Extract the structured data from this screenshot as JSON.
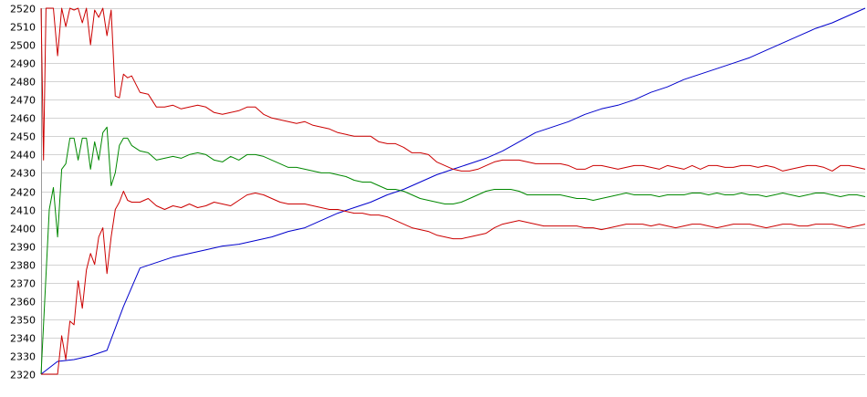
{
  "chart_data": {
    "type": "line",
    "title": "",
    "xlabel": "",
    "ylabel": "",
    "ylim": [
      2320,
      2520
    ],
    "xlim": [
      0,
      100
    ],
    "yticks": [
      "2320",
      "2330",
      "2340",
      "2350",
      "2360",
      "2370",
      "2380",
      "2390",
      "2400",
      "2410",
      "2420",
      "2430",
      "2440",
      "2450",
      "2460",
      "2470",
      "2480",
      "2490",
      "2500",
      "2510",
      "2520"
    ],
    "grid": true,
    "legend": "none",
    "series": [
      {
        "color": "#0000cc",
        "x": [
          0,
          2,
          4,
          6,
          8,
          10,
          12,
          14,
          16,
          18,
          20,
          22,
          24,
          26,
          28,
          30,
          32,
          34,
          36,
          38,
          40,
          42,
          44,
          46,
          48,
          50,
          52,
          54,
          56,
          58,
          60,
          62,
          64,
          66,
          68,
          70,
          72,
          74,
          76,
          78,
          80,
          82,
          84,
          86,
          88,
          90,
          92,
          94,
          96,
          98,
          100
        ],
        "values": [
          2320,
          2327,
          2328,
          2330,
          2333,
          2357,
          2378,
          2381,
          2384,
          2386,
          2388,
          2390,
          2391,
          2393,
          2395,
          2398,
          2400,
          2404,
          2408,
          2411,
          2414,
          2418,
          2421,
          2425,
          2429,
          2432,
          2435,
          2438,
          2442,
          2447,
          2452,
          2455,
          2458,
          2462,
          2465,
          2467,
          2470,
          2474,
          2477,
          2481,
          2484,
          2487,
          2490,
          2493,
          2497,
          2501,
          2505,
          2509,
          2512,
          2516,
          2520
        ]
      },
      {
        "color": "#cc0000",
        "x": [
          0,
          0.3,
          0.6,
          1,
          1.5,
          2,
          2.5,
          3,
          3.5,
          4,
          4.5,
          5,
          5.5,
          6,
          6.5,
          7,
          7.5,
          8,
          8.5,
          9,
          9.5,
          10,
          10.5,
          11,
          12,
          13,
          14,
          15,
          16,
          17,
          18,
          19,
          20,
          21,
          22,
          23,
          24,
          25,
          26,
          27,
          28,
          29,
          30,
          31,
          32,
          33,
          34,
          35,
          36,
          37,
          38,
          39,
          40,
          41,
          42,
          43,
          44,
          45,
          46,
          47,
          48,
          49,
          50,
          51,
          52,
          53,
          54,
          55,
          56,
          57,
          58,
          59,
          60,
          61,
          62,
          63,
          64,
          65,
          66,
          67,
          68,
          69,
          70,
          71,
          72,
          73,
          74,
          75,
          76,
          77,
          78,
          79,
          80,
          81,
          82,
          83,
          84,
          85,
          86,
          87,
          88,
          89,
          90,
          91,
          92,
          93,
          94,
          95,
          96,
          97,
          98,
          99,
          100
        ],
        "values": [
          2520,
          2437,
          2520,
          2520,
          2520,
          2494,
          2520,
          2510,
          2520,
          2519,
          2520,
          2512,
          2520,
          2500,
          2519,
          2515,
          2520,
          2505,
          2519,
          2472,
          2471,
          2484,
          2482,
          2483,
          2474,
          2473,
          2466,
          2466,
          2467,
          2465,
          2466,
          2467,
          2466,
          2463,
          2462,
          2463,
          2464,
          2466,
          2466,
          2462,
          2460,
          2459,
          2458,
          2457,
          2458,
          2456,
          2455,
          2454,
          2452,
          2451,
          2450,
          2450,
          2450,
          2447,
          2446,
          2446,
          2444,
          2441,
          2441,
          2440,
          2436,
          2434,
          2432,
          2431,
          2431,
          2432,
          2434,
          2436,
          2437,
          2437,
          2437,
          2436,
          2435,
          2435,
          2435,
          2435,
          2434,
          2432,
          2432,
          2434,
          2434,
          2433,
          2432,
          2433,
          2434,
          2434,
          2433,
          2432,
          2434,
          2433,
          2432,
          2434,
          2432,
          2434,
          2434,
          2433,
          2433,
          2434,
          2434,
          2433,
          2434,
          2433,
          2431,
          2432,
          2433,
          2434,
          2434,
          2433,
          2431,
          2434,
          2434,
          2433,
          2432
        ],
        "note_unused": ""
      },
      {
        "color": "#008800",
        "x": [
          0,
          1,
          1.5,
          2,
          2.5,
          3,
          3.5,
          4,
          4.5,
          5,
          5.5,
          6,
          6.5,
          7,
          7.5,
          8,
          8.5,
          9,
          9.5,
          10,
          10.5,
          11,
          12,
          13,
          14,
          15,
          16,
          17,
          18,
          19,
          20,
          21,
          22,
          23,
          24,
          25,
          26,
          27,
          28,
          29,
          30,
          31,
          32,
          33,
          34,
          35,
          36,
          37,
          38,
          39,
          40,
          41,
          42,
          43,
          44,
          45,
          46,
          47,
          48,
          49,
          50,
          51,
          52,
          53,
          54,
          55,
          56,
          57,
          58,
          59,
          60,
          61,
          62,
          63,
          64,
          65,
          66,
          67,
          68,
          69,
          70,
          71,
          72,
          73,
          74,
          75,
          76,
          77,
          78,
          79,
          80,
          81,
          82,
          83,
          84,
          85,
          86,
          87,
          88,
          89,
          90,
          91,
          92,
          93,
          94,
          95,
          96,
          97,
          98,
          99,
          100
        ],
        "values": [
          2320,
          2410,
          2422,
          2395,
          2432,
          2435,
          2449,
          2449,
          2437,
          2449,
          2449,
          2432,
          2447,
          2437,
          2452,
          2455,
          2423,
          2430,
          2445,
          2449,
          2449,
          2445,
          2442,
          2441,
          2437,
          2438,
          2439,
          2438,
          2440,
          2441,
          2440,
          2437,
          2436,
          2439,
          2437,
          2440,
          2440,
          2439,
          2437,
          2435,
          2433,
          2433,
          2432,
          2431,
          2430,
          2430,
          2429,
          2428,
          2426,
          2425,
          2425,
          2423,
          2421,
          2421,
          2420,
          2418,
          2416,
          2415,
          2414,
          2413,
          2413,
          2414,
          2416,
          2418,
          2420,
          2421,
          2421,
          2421,
          2420,
          2418,
          2418,
          2418,
          2418,
          2418,
          2417,
          2416,
          2416,
          2415,
          2416,
          2417,
          2418,
          2419,
          2418,
          2418,
          2418,
          2417,
          2418,
          2418,
          2418,
          2419,
          2419,
          2418,
          2419,
          2418,
          2418,
          2419,
          2418,
          2418,
          2417,
          2418,
          2419,
          2418,
          2417,
          2418,
          2419,
          2419,
          2418,
          2417,
          2418,
          2418,
          2417
        ]
      },
      {
        "color": "#cc0000",
        "x": [
          0,
          1,
          2,
          2.5,
          3,
          3.5,
          4,
          4.5,
          5,
          5.5,
          6,
          6.5,
          7,
          7.5,
          8,
          8.5,
          9,
          9.5,
          10,
          10.5,
          11,
          12,
          13,
          14,
          15,
          16,
          17,
          18,
          19,
          20,
          21,
          22,
          23,
          24,
          25,
          26,
          27,
          28,
          29,
          30,
          31,
          32,
          33,
          34,
          35,
          36,
          37,
          38,
          39,
          40,
          41,
          42,
          43,
          44,
          45,
          46,
          47,
          48,
          49,
          50,
          51,
          52,
          53,
          54,
          55,
          56,
          57,
          58,
          59,
          60,
          61,
          62,
          63,
          64,
          65,
          66,
          67,
          68,
          69,
          70,
          71,
          72,
          73,
          74,
          75,
          76,
          77,
          78,
          79,
          80,
          81,
          82,
          83,
          84,
          85,
          86,
          87,
          88,
          89,
          90,
          91,
          92,
          93,
          94,
          95,
          96,
          97,
          98,
          99,
          100
        ],
        "values": [
          2320,
          2320,
          2320,
          2341,
          2328,
          2349,
          2347,
          2371,
          2356,
          2377,
          2386,
          2380,
          2395,
          2400,
          2375,
          2395,
          2410,
          2414,
          2420,
          2415,
          2414,
          2414,
          2416,
          2412,
          2410,
          2412,
          2411,
          2413,
          2411,
          2412,
          2414,
          2413,
          2412,
          2415,
          2418,
          2419,
          2418,
          2416,
          2414,
          2413,
          2413,
          2413,
          2412,
          2411,
          2410,
          2410,
          2409,
          2408,
          2408,
          2407,
          2407,
          2406,
          2404,
          2402,
          2400,
          2399,
          2398,
          2396,
          2395,
          2394,
          2394,
          2395,
          2396,
          2397,
          2400,
          2402,
          2403,
          2404,
          2403,
          2402,
          2401,
          2401,
          2401,
          2401,
          2401,
          2400,
          2400,
          2399,
          2400,
          2401,
          2402,
          2402,
          2402,
          2401,
          2402,
          2401,
          2400,
          2401,
          2402,
          2402,
          2401,
          2400,
          2401,
          2402,
          2402,
          2402,
          2401,
          2400,
          2401,
          2402,
          2402,
          2401,
          2401,
          2402,
          2402,
          2402,
          2401,
          2400,
          2401,
          2402
        ]
      }
    ]
  }
}
